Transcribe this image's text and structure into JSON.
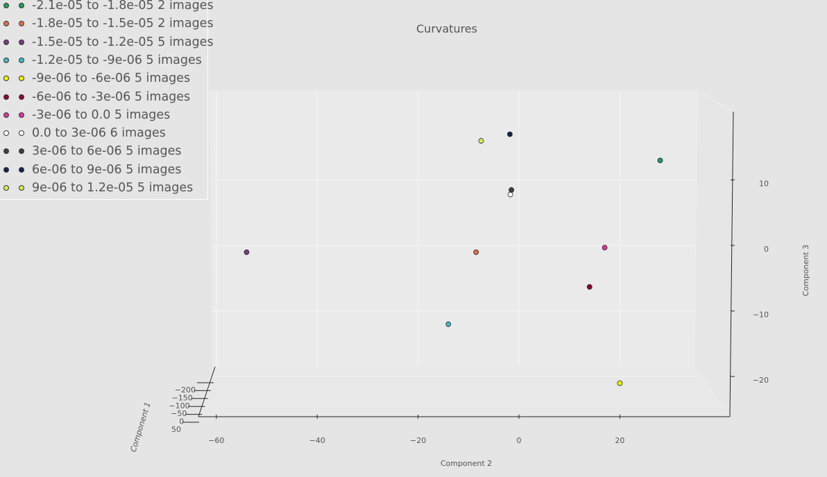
{
  "chart_data": {
    "type": "scatter",
    "projection": "3d",
    "title": "Curvatures",
    "xlabel": "Component 1",
    "ylabel": "Component 2",
    "zlabel": "Component 3",
    "xticks": [
      "−200",
      "−150",
      "−100",
      "−50",
      "0",
      "50"
    ],
    "yticks": [
      "−60",
      "−40",
      "−20",
      "0",
      "20"
    ],
    "zticks": [
      "10",
      "0",
      "−10",
      "−20"
    ],
    "legend_position": "upper-left",
    "series": [
      {
        "name": "-2.1e-05 to -1.8e-05 2 images",
        "color": "#1f9e5e",
        "component2": 28.0,
        "component3": 13.5
      },
      {
        "name": "-1.8e-05 to -1.5e-05 2 images",
        "color": "#e0704a",
        "component2": -8.5,
        "component3": -0.5
      },
      {
        "name": "-1.5e-05 to -1.2e-05 5 images",
        "color": "#7b3a85",
        "component2": -54.0,
        "component3": -0.5
      },
      {
        "name": "-1.2e-05 to -9e-06 5 images",
        "color": "#44b8c4",
        "component2": -14.0,
        "component3": -11.5
      },
      {
        "name": "-9e-06 to -6e-06 5 images",
        "color": "#f2f20d",
        "component2": 20.0,
        "component3": -20.5
      },
      {
        "name": "-6e-06 to -3e-06 5 images",
        "color": "#8c0a28",
        "component2": 14.0,
        "component3": -5.8
      },
      {
        "name": "-3e-06 to 0.0 5 images",
        "color": "#d63a9e",
        "component2": 17.0,
        "component3": 0.2
      },
      {
        "name": "0.0 to 3e-06 6 images",
        "color": "#ffffff",
        "component2": -1.7,
        "component3": 8.3
      },
      {
        "name": "3e-06 to 6e-06 5 images",
        "color": "#3a4048",
        "component2": -1.5,
        "component3": 9.0
      },
      {
        "name": "6e-06 to 9e-06 5 images",
        "color": "#14214a",
        "component2": -1.8,
        "component3": 17.5
      },
      {
        "name": "9e-06 to 1.2e-05 5 images",
        "color": "#d6ea5a",
        "component2": -7.5,
        "component3": 16.5
      }
    ]
  }
}
